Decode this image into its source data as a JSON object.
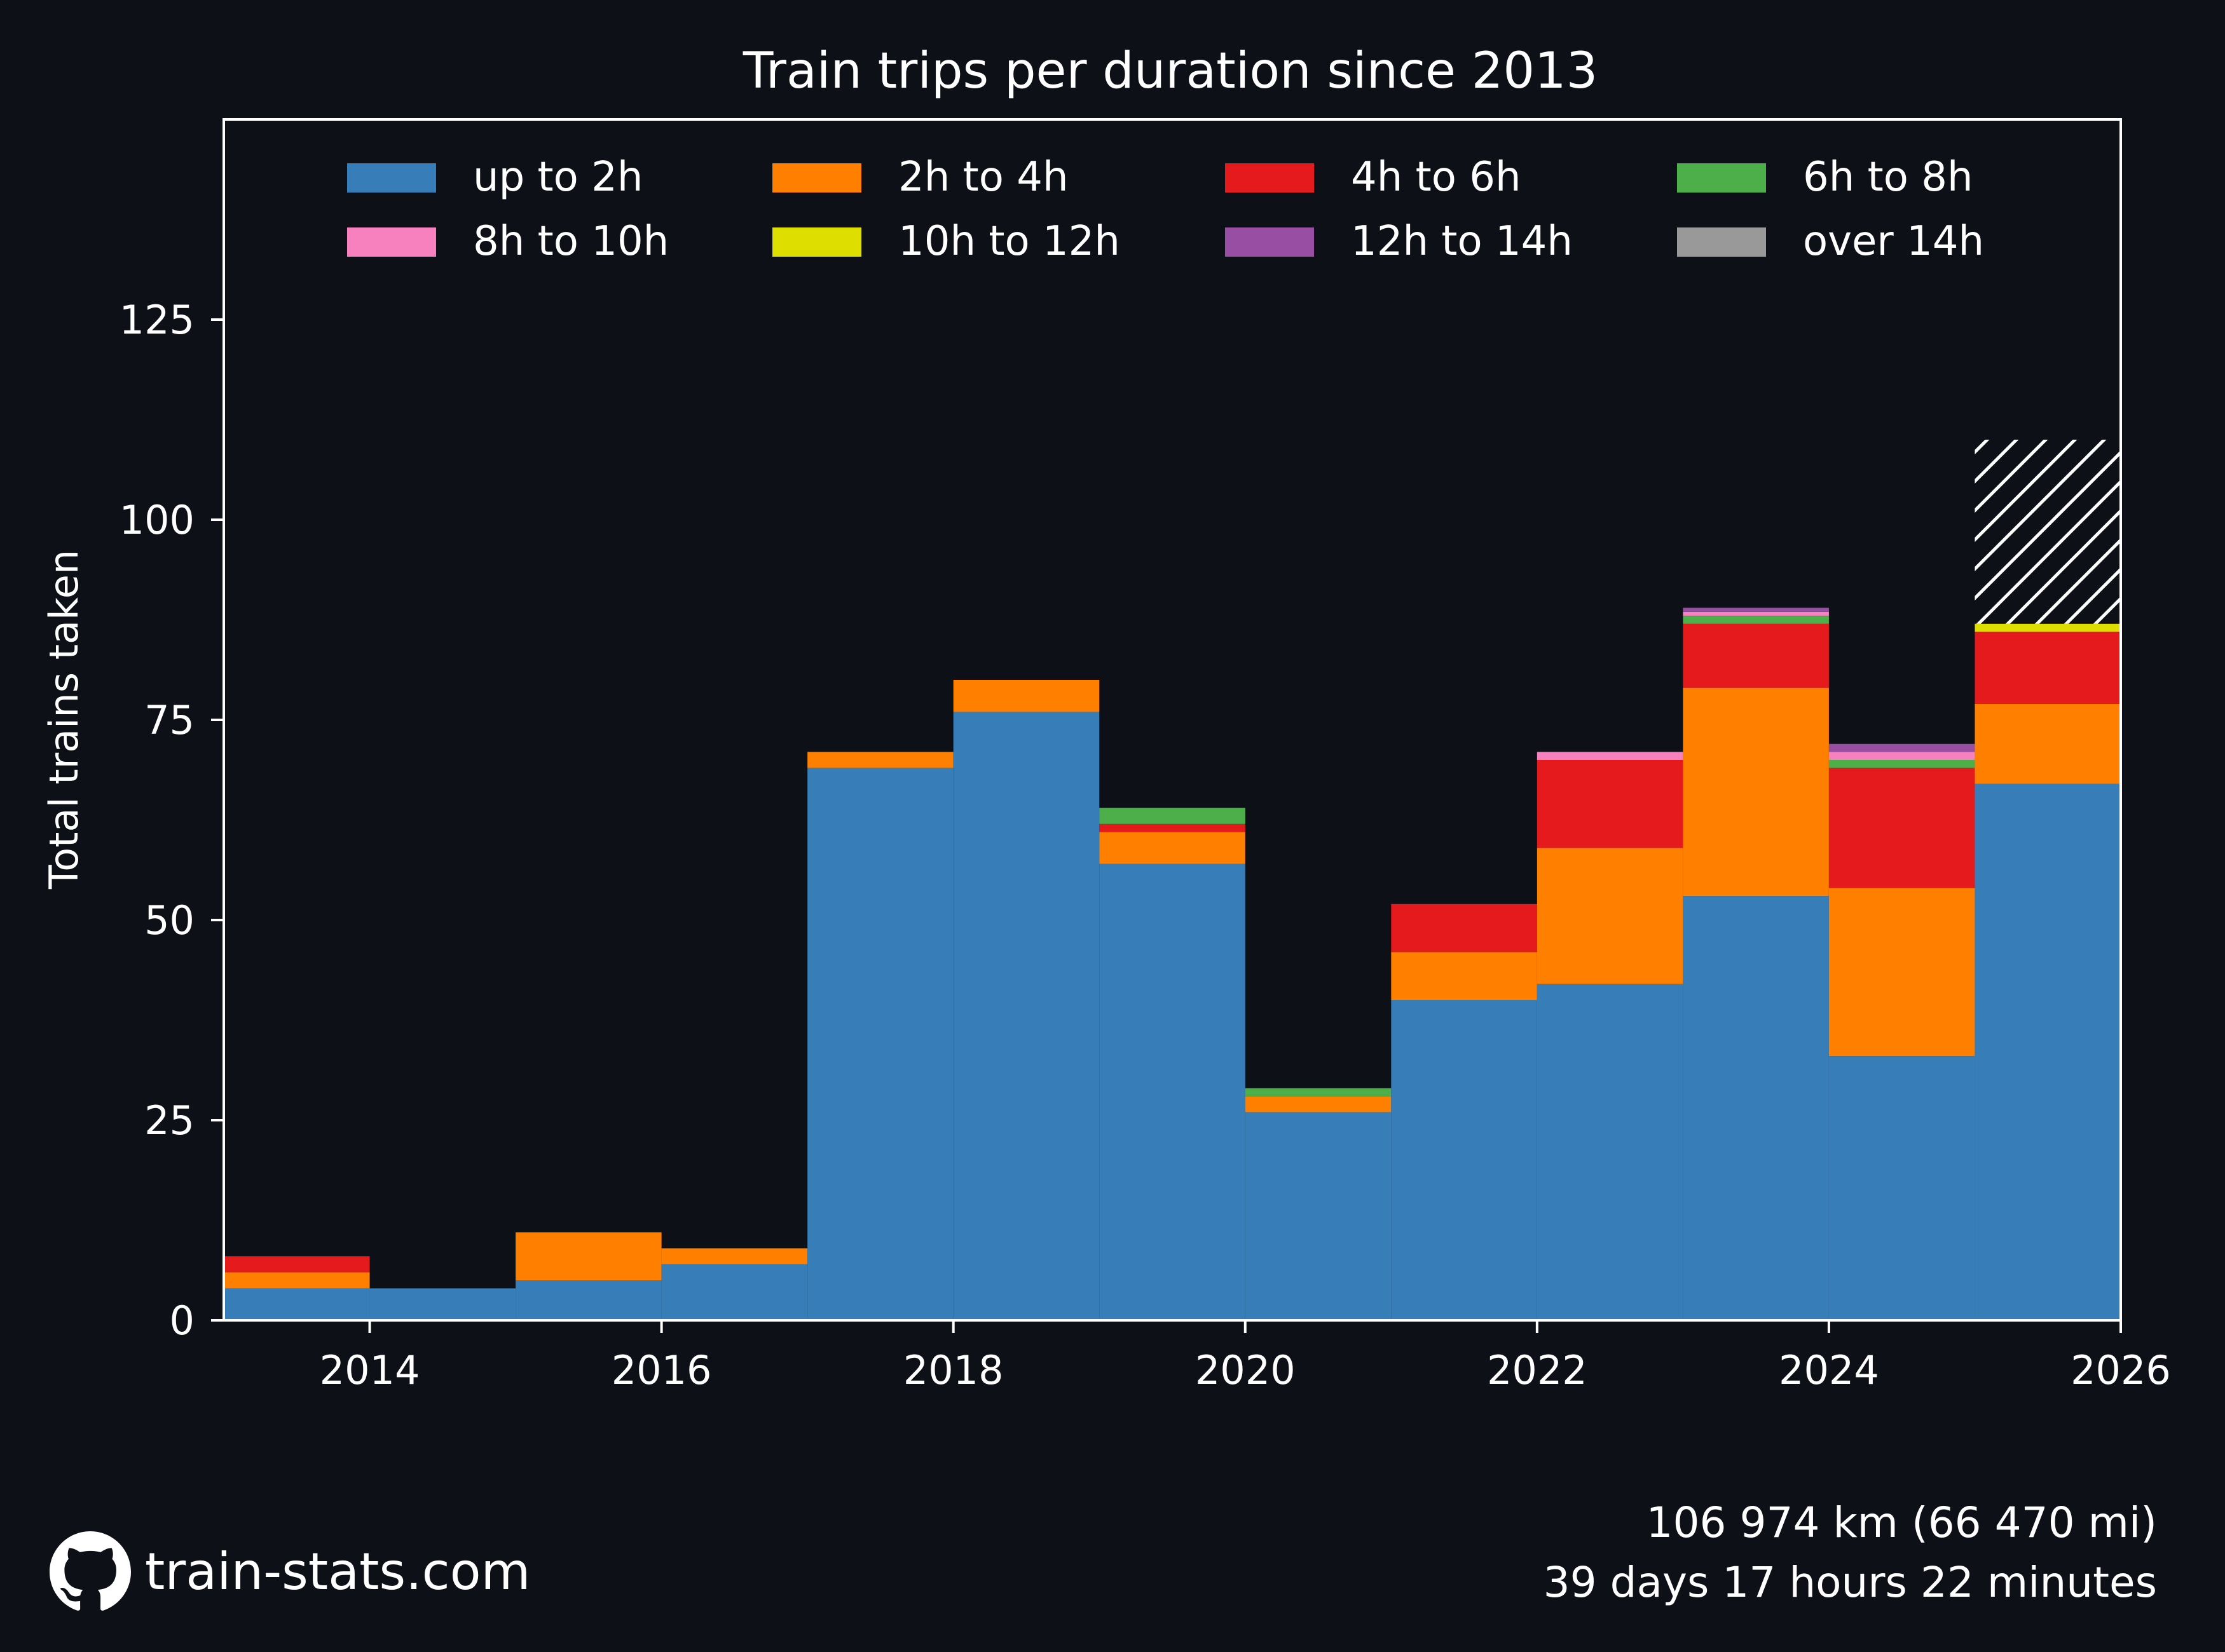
{
  "chart_data": {
    "type": "bar",
    "stacked": true,
    "title": "Train trips per duration since 2013",
    "xlabel": "",
    "ylabel": "Total trains taken",
    "xlim": [
      2013,
      2026
    ],
    "ylim": [
      0,
      150
    ],
    "x_ticks": [
      2014,
      2016,
      2018,
      2020,
      2022,
      2024,
      2026
    ],
    "y_ticks": [
      0,
      25,
      50,
      75,
      100,
      125
    ],
    "grid": false,
    "legend_position": "top",
    "legend_columns": 4,
    "background_color": "#0d1017",
    "categories": [
      2013,
      2014,
      2015,
      2016,
      2017,
      2018,
      2019,
      2020,
      2021,
      2022,
      2023,
      2024,
      2025
    ],
    "series": [
      {
        "name": "up to 2h",
        "color": "#377eb8",
        "values": [
          4,
          4,
          5,
          7,
          69,
          76,
          57,
          26,
          40,
          42,
          53,
          33,
          67
        ]
      },
      {
        "name": "2h to 4h",
        "color": "#ff7f00",
        "values": [
          2,
          0,
          6,
          2,
          2,
          4,
          4,
          2,
          6,
          17,
          26,
          21,
          10
        ]
      },
      {
        "name": "4h to 6h",
        "color": "#e41a1c",
        "values": [
          2,
          0,
          0,
          0,
          0,
          0,
          1,
          0,
          6,
          11,
          8,
          15,
          9
        ]
      },
      {
        "name": "6h to 8h",
        "color": "#4daf4a",
        "values": [
          0,
          0,
          0,
          0,
          0,
          0,
          2,
          1,
          0,
          0,
          1,
          1,
          0
        ]
      },
      {
        "name": "8h to 10h",
        "color": "#f781bf",
        "values": [
          0,
          0,
          0,
          0,
          0,
          0,
          0,
          0,
          0,
          1,
          0.5,
          1,
          0
        ]
      },
      {
        "name": "10h to 12h",
        "color": "#dede00",
        "values": [
          0,
          0,
          0,
          0,
          0,
          0,
          0,
          0,
          0,
          0,
          0,
          0,
          1
        ]
      },
      {
        "name": "12h to 14h",
        "color": "#984ea3",
        "values": [
          0,
          0,
          0,
          0,
          0,
          0,
          0,
          0,
          0,
          0,
          0.5,
          1,
          0
        ]
      },
      {
        "name": "over 14h",
        "color": "#999999",
        "values": [
          0,
          0,
          0,
          0,
          0,
          0,
          0,
          0,
          0,
          0,
          0,
          0,
          0
        ]
      }
    ],
    "projection": {
      "category": 2025,
      "from": 87,
      "to": 110,
      "style": "hatched"
    }
  },
  "footer": {
    "distance": "106 974 km (66 470 mi)",
    "duration": "39 days 17 hours 22 minutes",
    "brand": "train-stats.com",
    "brand_icon": "github-icon"
  }
}
